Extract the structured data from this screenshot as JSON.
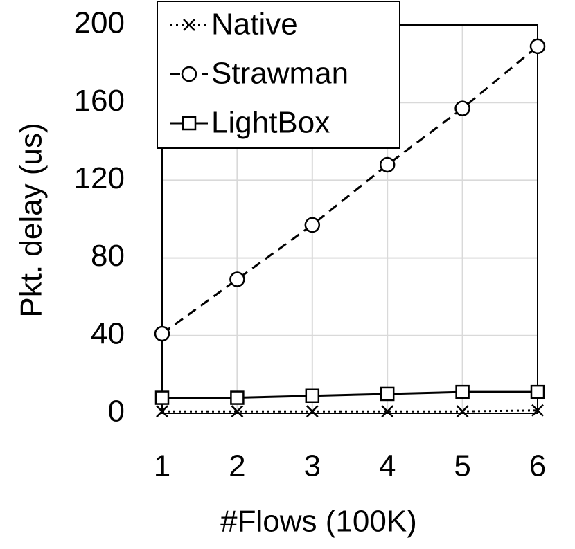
{
  "chart_data": {
    "type": "line",
    "x_label": "#Flows (100K)",
    "y_label": "Pkt. delay (us)",
    "x": [
      1,
      2,
      3,
      4,
      5,
      6
    ],
    "series": [
      {
        "name": "Native",
        "color": "#000000",
        "dash": "dotted",
        "marker": "x",
        "values": [
          1,
          1,
          1,
          1,
          1,
          1.5
        ]
      },
      {
        "name": "Strawman",
        "color": "#000000",
        "dash": "dashed",
        "marker": "circle",
        "values": [
          41,
          69,
          97,
          128,
          157,
          189
        ]
      },
      {
        "name": "LightBox",
        "color": "#000000",
        "dash": "solid",
        "marker": "square",
        "values": [
          8,
          8,
          9,
          10,
          11,
          11
        ]
      }
    ],
    "xlim": [
      1,
      6
    ],
    "xticks": [
      1,
      2,
      3,
      4,
      5,
      6
    ],
    "ylim": [
      0,
      200
    ],
    "yticks": [
      0,
      40,
      80,
      120,
      160,
      200
    ],
    "grid": true,
    "legend": "upper left"
  }
}
